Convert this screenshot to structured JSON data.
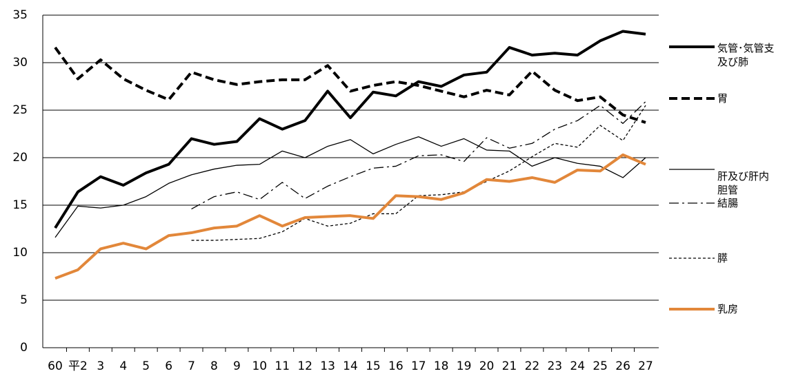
{
  "chart_data": {
    "type": "line",
    "categories": [
      "60",
      "平2",
      "3",
      "4",
      "5",
      "6",
      "7",
      "8",
      "9",
      "10",
      "11",
      "12",
      "13",
      "14",
      "15",
      "16",
      "17",
      "18",
      "19",
      "20",
      "21",
      "22",
      "23",
      "24",
      "25",
      "26",
      "27"
    ],
    "ylim": [
      0,
      35
    ],
    "yticks": [
      0,
      5,
      10,
      15,
      20,
      25,
      30,
      35
    ],
    "grid": true,
    "series": [
      {
        "name": "気管･気管支\n及び肺",
        "color": "#000000",
        "line_width": 4,
        "line_style": "solid",
        "values": [
          12.6,
          16.4,
          18,
          17.1,
          18.4,
          19.3,
          22,
          21.4,
          21.7,
          24.1,
          23,
          23.9,
          27,
          24.2,
          26.9,
          26.5,
          28,
          27.5,
          28.7,
          29,
          31.6,
          30.8,
          31,
          30.8,
          32.3,
          33.3,
          33
        ]
      },
      {
        "name": "胃",
        "color": "#000000",
        "line_width": 4,
        "line_style": "dash",
        "values": [
          31.6,
          28.3,
          30.3,
          28.3,
          27.1,
          26.1,
          29,
          28.2,
          27.7,
          28,
          28.2,
          28.2,
          29.7,
          27,
          27.6,
          28,
          27.6,
          27,
          26.4,
          27.1,
          26.6,
          29.1,
          27.1,
          26,
          26.4,
          24.5,
          23.7
        ]
      },
      {
        "name": "肝及び肝内\n胆管",
        "color": "#000000",
        "line_width": 1.3,
        "line_style": "solid",
        "values": [
          11.6,
          14.9,
          14.7,
          15,
          15.9,
          17.3,
          18.2,
          18.8,
          19.2,
          19.3,
          20.7,
          20,
          21.2,
          21.9,
          20.4,
          21.4,
          22.2,
          21.2,
          22,
          20.8,
          20.7,
          19.1,
          20,
          19.4,
          19.1,
          17.9,
          20
        ]
      },
      {
        "name": "結腸",
        "color": "#000000",
        "line_width": 1.3,
        "line_style": "dashdot",
        "values": [
          null,
          null,
          null,
          null,
          null,
          null,
          14.6,
          15.9,
          16.4,
          15.6,
          17.4,
          15.7,
          17,
          18,
          18.9,
          19.1,
          20.2,
          20.3,
          19.6,
          22.1,
          21,
          21.5,
          23,
          23.9,
          25.5,
          23.6,
          25.9
        ]
      },
      {
        "name": "膵",
        "color": "#000000",
        "line_width": 1.3,
        "line_style": "dot",
        "values": [
          null,
          null,
          null,
          null,
          null,
          null,
          11.3,
          11.3,
          11.4,
          11.5,
          12.2,
          13.6,
          12.8,
          13.1,
          14.1,
          14.1,
          16,
          16.1,
          16.4,
          17.5,
          18.6,
          20.1,
          21.5,
          21.1,
          23.4,
          21.8,
          25.5
        ]
      },
      {
        "name": "乳房",
        "color": "#e2873a",
        "line_width": 4,
        "line_style": "solid",
        "values": [
          7.3,
          8.2,
          10.4,
          11,
          10.4,
          11.8,
          12.1,
          12.6,
          12.8,
          13.9,
          12.8,
          13.7,
          13.8,
          13.9,
          13.6,
          16,
          15.9,
          15.6,
          16.3,
          17.7,
          17.5,
          17.9,
          17.4,
          18.7,
          18.6,
          20.3,
          19.3
        ]
      }
    ]
  }
}
